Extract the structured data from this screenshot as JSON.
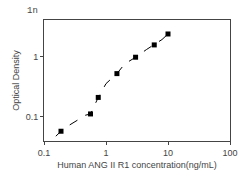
{
  "chart_data": {
    "type": "scatter",
    "xlabel": "Human ANG II R1 concentration(ng/mL)",
    "ylabel": "Optical Density",
    "log": true,
    "grid": false,
    "xlim": [
      0.1,
      100
    ],
    "ylim": [
      0.04,
      4
    ],
    "xticks": [
      0.1,
      1,
      10,
      100
    ],
    "yticks": [
      0.1,
      1
    ],
    "annotations": [
      {
        "text": "1n"
      }
    ],
    "series": [
      {
        "type": "line",
        "line_style": "dashed",
        "color": "black",
        "x": [
          0.155,
          0.188,
          0.25,
          0.35,
          0.47,
          0.563,
          0.75,
          1.0,
          1.5,
          2.0,
          3.0,
          4.5,
          6.0,
          8.0,
          10.0
        ],
        "values": [
          0.048,
          0.058,
          0.072,
          0.09,
          0.107,
          0.112,
          0.21,
          0.355,
          0.52,
          0.75,
          0.97,
          1.3,
          1.55,
          1.9,
          2.35
        ]
      },
      {
        "type": "scatter",
        "marker": "square",
        "color": "black",
        "x": [
          0.188,
          0.563,
          0.75,
          1.5,
          3.0,
          6.0,
          10.0
        ],
        "values": [
          0.058,
          0.112,
          0.21,
          0.52,
          0.97,
          1.55,
          2.35
        ]
      }
    ]
  }
}
